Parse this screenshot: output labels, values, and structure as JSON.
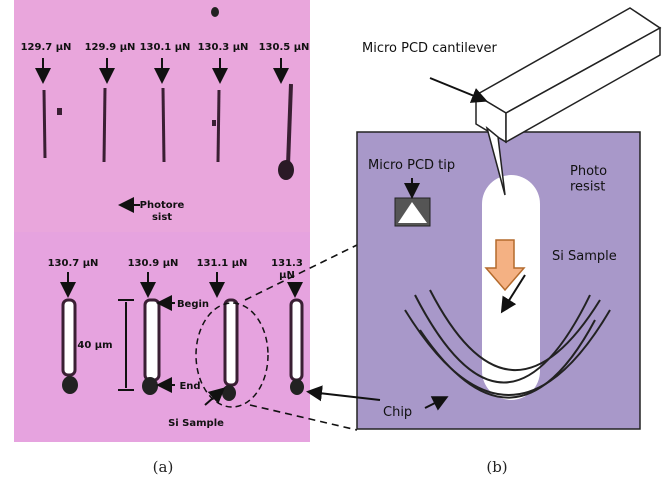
{
  "panel_a": {
    "top_forces": [
      "129.7 μN",
      "129.9 μN",
      "130.1 μN",
      "130.3 μN",
      "130.5 μN"
    ],
    "photoresist": "Photore\nsist",
    "bottom_forces": [
      "130.7 μN",
      "130.9 μN",
      "131.1 μN",
      "131.3\nμN"
    ],
    "begin": "Begin",
    "end": "End",
    "length": "40 μm",
    "si_sample": "Si Sample",
    "caption": "(a)"
  },
  "panel_b": {
    "cantilever": "Micro PCD cantilever",
    "tip": "Micro PCD tip",
    "photoresist": "Photo\nresist",
    "si_sample": "Si Sample",
    "chip": "Chip",
    "caption": "(b)"
  }
}
